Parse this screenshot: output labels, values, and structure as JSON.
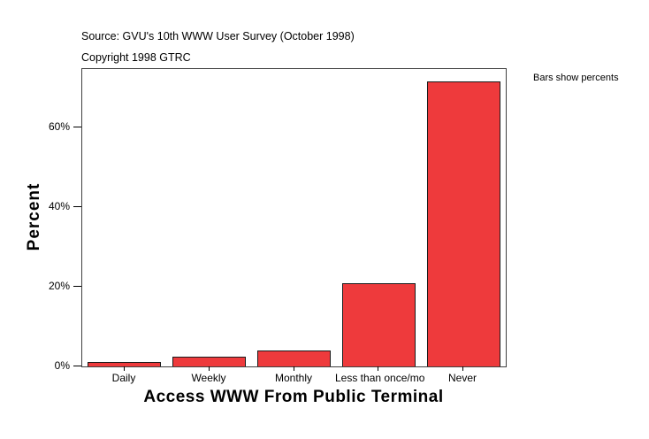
{
  "header": {
    "source_line": "Source: GVU's 10th WWW User Survey (October 1998)",
    "copyright_line": "Copyright 1998 GTRC"
  },
  "chart_data": {
    "type": "bar",
    "title": "",
    "categories": [
      "Daily",
      "Weekly",
      "Monthly",
      "Less than once/mo",
      "Never"
    ],
    "values": [
      1.2,
      2.4,
      4.1,
      20.8,
      71.5
    ],
    "xlabel": "Access WWW From Public Terminal",
    "ylabel": "Percent",
    "annotation": "Bars show percents",
    "ylim": [
      0,
      74.7
    ],
    "yticks": [
      0,
      20,
      40,
      60
    ],
    "ytick_labels": [
      "0%",
      "20%",
      "40%",
      "60%"
    ],
    "grid": false,
    "legend_position": "none",
    "bar_color": "#EE3A3C",
    "bar_border_color": "#1A1A1A",
    "frame_color": "#404040"
  }
}
